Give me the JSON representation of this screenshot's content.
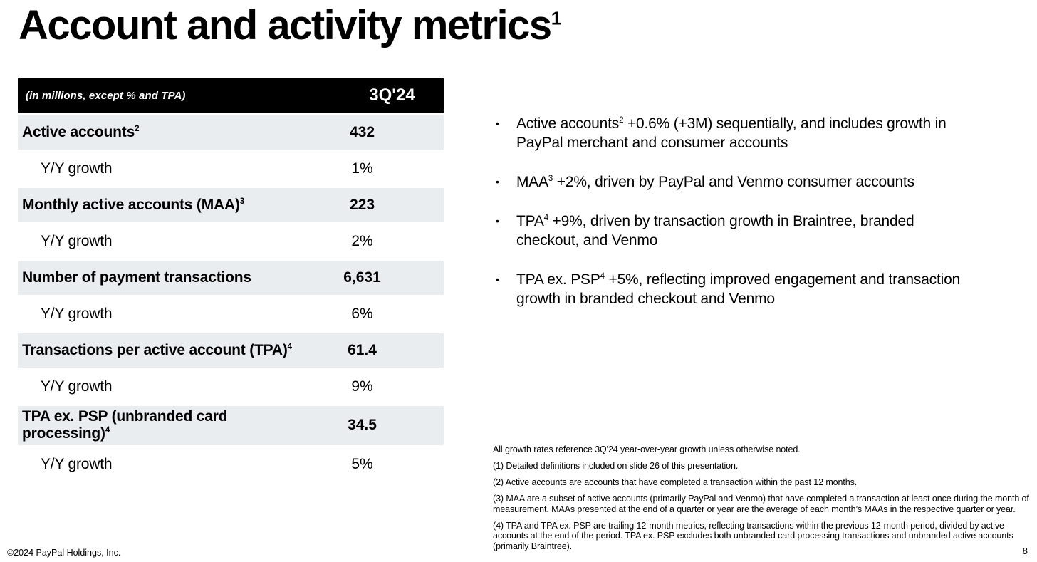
{
  "slide": {
    "title": "Account and activity metrics",
    "title_superscript": "1",
    "copyright": "©2024 PayPal Holdings, Inc.",
    "page_number": "8",
    "bullet_glyph": "•"
  },
  "colors": {
    "header_bg": "#000000",
    "header_text": "#ffffff",
    "row_shade": "#e9edef",
    "text": "#000000"
  },
  "table": {
    "units_label": "(in millions, except % and TPA)",
    "period": "3Q'24",
    "rows": [
      {
        "label": "Active accounts",
        "superscript": "2",
        "value": "432",
        "variant": "primary"
      },
      {
        "label": "Y/Y growth",
        "superscript": "",
        "value": "1%",
        "variant": "secondary"
      },
      {
        "label": "Monthly active accounts (MAA)",
        "superscript": "3",
        "value": "223",
        "variant": "primary"
      },
      {
        "label": "Y/Y growth",
        "superscript": "",
        "value": "2%",
        "variant": "secondary"
      },
      {
        "label": "Number of payment transactions",
        "superscript": "",
        "value": "6,631",
        "variant": "primary"
      },
      {
        "label": "Y/Y growth",
        "superscript": "",
        "value": "6%",
        "variant": "secondary"
      },
      {
        "label": "Transactions per active account (TPA)",
        "superscript": "4",
        "value": "61.4",
        "variant": "primary"
      },
      {
        "label": "Y/Y growth",
        "superscript": "",
        "value": "9%",
        "variant": "secondary"
      },
      {
        "label": "TPA ex. PSP (unbranded card processing)",
        "superscript": "4",
        "value": "34.5",
        "variant": "primary"
      },
      {
        "label": "Y/Y growth",
        "superscript": "",
        "value": "5%",
        "variant": "secondary"
      }
    ]
  },
  "highlights": [
    {
      "text_before_sup": "Active accounts",
      "superscript": "2",
      "text_after_sup": " +0.6% (+3M) sequentially, and includes growth in PayPal merchant and consumer accounts"
    },
    {
      "text_before_sup": "MAA",
      "superscript": "3",
      "text_after_sup": " +2%, driven by PayPal and Venmo consumer accounts"
    },
    {
      "text_before_sup": "TPA",
      "superscript": "4",
      "text_after_sup": " +9%, driven by transaction growth in Braintree, branded checkout, and Venmo"
    },
    {
      "text_before_sup": "TPA ex. PSP",
      "superscript": "4",
      "text_after_sup": " +5%, reflecting improved engagement and transaction growth in branded checkout and Venmo"
    }
  ],
  "footnotes": [
    "All growth rates reference 3Q'24 year-over-year growth unless otherwise noted.",
    "(1) Detailed definitions included on slide 26 of this presentation.",
    "(2) Active accounts are accounts that have completed a transaction within the past 12 months.",
    "(3) MAA are a subset of active accounts (primarily PayPal and Venmo) that have completed a transaction at least once during the month of measurement. MAAs presented at the end of a quarter or year are the average of each month’s MAAs in the respective quarter or year.",
    "(4) TPA and TPA ex. PSP are trailing 12-month metrics, reflecting transactions within the previous 12-month period, divided by active accounts at the end of the period. TPA ex. PSP excludes both unbranded card processing transactions and unbranded active accounts (primarily Braintree)."
  ]
}
